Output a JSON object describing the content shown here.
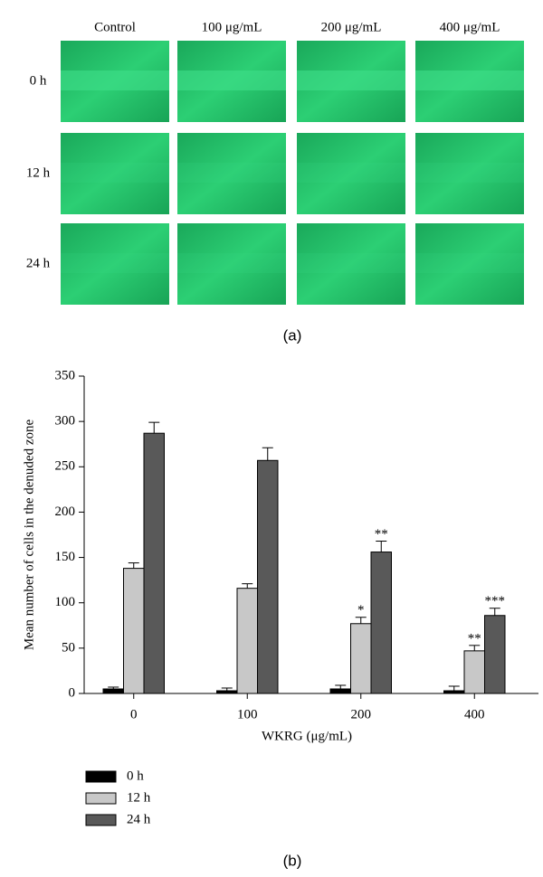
{
  "panel_a": {
    "columns": [
      "Control",
      "100 μg/mL",
      "200 μg/mL",
      "400 μg/mL"
    ],
    "rows": [
      "0 h",
      "12 h",
      "24 h"
    ],
    "caption": "(a)"
  },
  "chart_data": {
    "type": "bar",
    "y_label": "Mean number of cells in the denuded zone",
    "x_label": "WKRG (μg/mL)",
    "caption": "(b)",
    "categories": [
      "0",
      "100",
      "200",
      "400"
    ],
    "series": [
      {
        "name": "0 h",
        "color": "#000000",
        "values": [
          5,
          3,
          5,
          3
        ],
        "errors": [
          2,
          3,
          4,
          5
        ],
        "significance": [
          null,
          null,
          null,
          null
        ]
      },
      {
        "name": "12 h",
        "color": "#c8c8c8",
        "values": [
          138,
          116,
          77,
          47
        ],
        "errors": [
          6,
          5,
          7,
          6
        ],
        "significance": [
          null,
          null,
          "*",
          "**"
        ]
      },
      {
        "name": "24 h",
        "color": "#595959",
        "values": [
          287,
          257,
          156,
          86
        ],
        "errors": [
          12,
          14,
          12,
          8
        ],
        "significance": [
          null,
          null,
          "**",
          "***"
        ]
      }
    ],
    "ylim": [
      0,
      350
    ],
    "yticks": [
      0,
      50,
      100,
      150,
      200,
      250,
      300,
      350
    ],
    "legend": "bottom-left"
  }
}
